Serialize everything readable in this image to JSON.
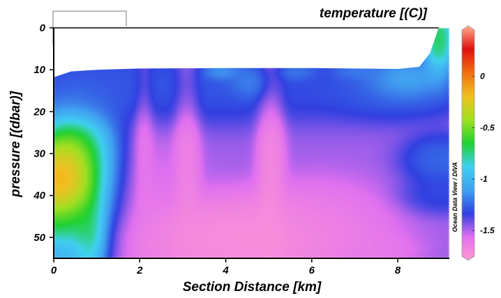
{
  "chart_data": {
    "type": "heatmap",
    "title": "temperature [(C)]",
    "xlabel": "Section Distance [km]",
    "ylabel": "pressure [(dbar)]",
    "watermark": "Ocean Data View / DIVA",
    "xlim": [
      0,
      9.2
    ],
    "ylim": [
      55,
      0
    ],
    "x_ticks": [
      {
        "value": 0,
        "label": "0"
      },
      {
        "value": 2,
        "label": "2"
      },
      {
        "value": 4,
        "label": "4"
      },
      {
        "value": 6,
        "label": "6"
      },
      {
        "value": 8,
        "label": "8"
      }
    ],
    "y_ticks": [
      {
        "value": 0,
        "label": "0"
      },
      {
        "value": 10,
        "label": "10"
      },
      {
        "value": 20,
        "label": "20"
      },
      {
        "value": 30,
        "label": "30"
      },
      {
        "value": 40,
        "label": "40"
      },
      {
        "value": 50,
        "label": "50"
      }
    ],
    "colorbar": {
      "range": [
        -1.75,
        0.45
      ],
      "ticks": [
        {
          "value": 0,
          "label": "0"
        },
        {
          "value": -0.5,
          "label": "-0.5"
        },
        {
          "value": -1,
          "label": "-1"
        },
        {
          "value": -1.5,
          "label": "-1.5"
        }
      ],
      "colormap": [
        "#ff9ad0",
        "#e070f0",
        "#3040e0",
        "#40a0f0",
        "#40d0f0",
        "#20d030",
        "#a0e020",
        "#f0c020",
        "#f07010",
        "#e01010",
        "#ffb090"
      ]
    },
    "surface_boundary": [
      {
        "x": 0.0,
        "p": 11.8
      },
      {
        "x": 0.4,
        "p": 10.4
      },
      {
        "x": 1.0,
        "p": 10.0
      },
      {
        "x": 2.0,
        "p": 9.7
      },
      {
        "x": 4.0,
        "p": 9.6
      },
      {
        "x": 6.0,
        "p": 9.6
      },
      {
        "x": 8.0,
        "p": 9.8
      },
      {
        "x": 8.5,
        "p": 9.3
      },
      {
        "x": 8.75,
        "p": 6.0
      },
      {
        "x": 8.95,
        "p": 0.0
      }
    ],
    "water_mass_base": -1.45,
    "features": [
      {
        "x": 0.2,
        "p": 39.0,
        "dx": 0.45,
        "dp": 6.5,
        "temp": 0.35
      },
      {
        "x": 0.55,
        "p": 38.0,
        "dx": 0.6,
        "dp": 10.0,
        "temp": -0.05
      },
      {
        "x": 0.85,
        "p": 49.5,
        "dx": 0.22,
        "dp": 5.0,
        "temp": -0.35
      },
      {
        "x": 0.35,
        "p": 47.0,
        "dx": 0.5,
        "dp": 5.0,
        "temp": -1.1
      },
      {
        "x": 0.1,
        "p": 53.0,
        "dx": 0.6,
        "dp": 2.0,
        "temp": -1.05
      },
      {
        "x": 8.95,
        "p": 3.0,
        "dx": 0.2,
        "dp": 5.0,
        "temp": -0.45
      },
      {
        "x": 8.2,
        "p": 12.5,
        "dx": 0.5,
        "dp": 2.6,
        "temp": -0.85
      },
      {
        "x": 3.9,
        "p": 10.5,
        "dx": 0.25,
        "dp": 1.2,
        "temp": -0.95
      },
      {
        "x": 4.6,
        "p": 13.0,
        "dx": 0.3,
        "dp": 2.2,
        "temp": -1.05
      },
      {
        "x": 5.6,
        "p": 10.5,
        "dx": 0.3,
        "dp": 1.2,
        "temp": -1.1
      },
      {
        "x": 7.0,
        "p": 10.5,
        "dx": 0.3,
        "dp": 1.2,
        "temp": -1.1
      },
      {
        "x": 3.2,
        "p": 14.0,
        "dx": 2.6,
        "dp": 5.0,
        "temp": -1.2
      },
      {
        "x": 8.0,
        "p": 15.0,
        "dx": 1.0,
        "dp": 4.0,
        "temp": -1.18
      },
      {
        "x": 1.2,
        "p": 13.0,
        "dx": 0.6,
        "dp": 4.0,
        "temp": -1.25
      },
      {
        "x": 9.0,
        "p": 31.5,
        "dx": 0.5,
        "dp": 3.5,
        "temp": -1.15
      },
      {
        "x": 9.0,
        "p": 40.0,
        "dx": 0.5,
        "dp": 2.5,
        "temp": -1.25
      },
      {
        "x": 3.1,
        "p": 36.0,
        "dx": 0.17,
        "dp": 22.0,
        "temp": -1.68
      },
      {
        "x": 5.05,
        "p": 35.0,
        "dx": 0.18,
        "dp": 19.0,
        "temp": -1.72
      },
      {
        "x": 2.1,
        "p": 33.0,
        "dx": 0.12,
        "dp": 16.0,
        "temp": -1.62
      },
      {
        "x": 4.9,
        "p": 50.0,
        "dx": 1.4,
        "dp": 6.0,
        "temp": -1.75
      },
      {
        "x": 3.6,
        "p": 51.0,
        "dx": 1.3,
        "dp": 5.0,
        "temp": -1.7
      },
      {
        "x": 1.8,
        "p": 43.0,
        "dx": 0.7,
        "dp": 10.0,
        "temp": -1.6
      },
      {
        "x": 6.3,
        "p": 47.0,
        "dx": 0.8,
        "dp": 6.0,
        "temp": -1.6
      },
      {
        "x": 7.5,
        "p": 53.0,
        "dx": 0.5,
        "dp": 2.0,
        "temp": -1.6
      }
    ]
  }
}
